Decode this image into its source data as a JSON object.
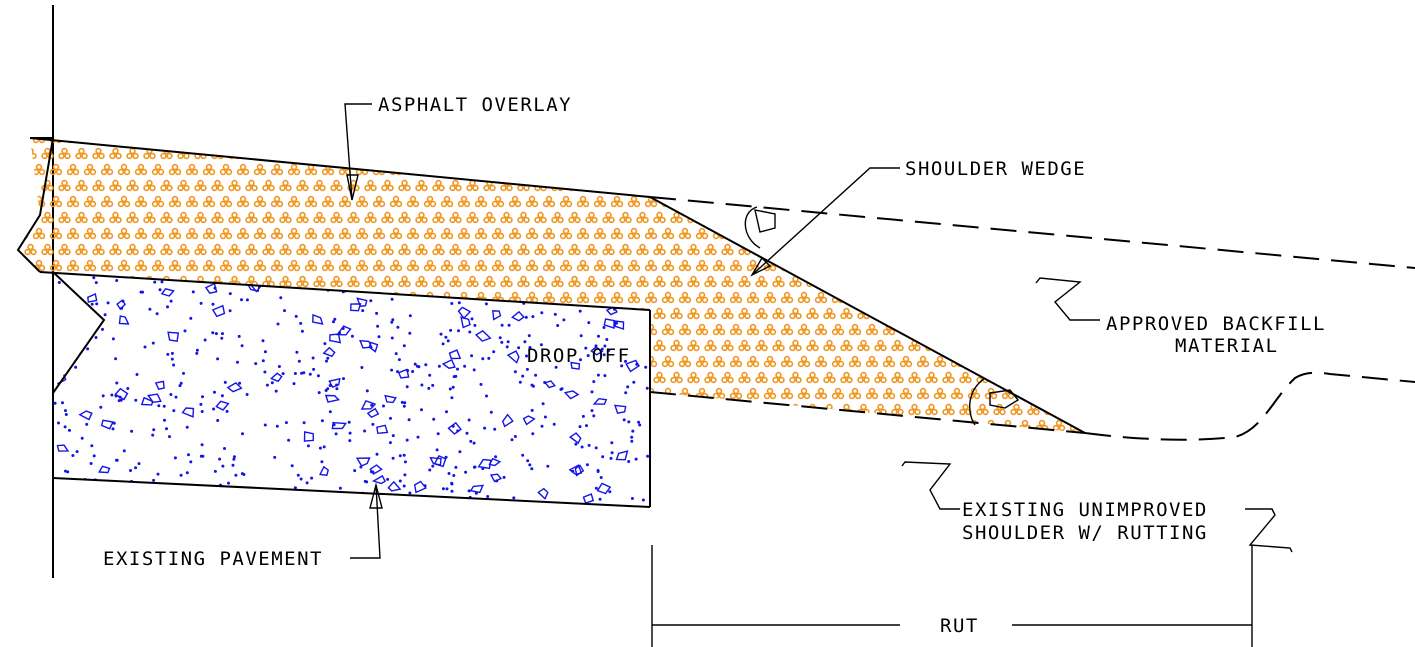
{
  "labels": {
    "asphalt_overlay": "ASPHALT OVERLAY",
    "shoulder_wedge": "SHOULDER WEDGE",
    "approved_backfill_line1": "APPROVED BACKFILL",
    "approved_backfill_line2": "MATERIAL",
    "drop_off": "DROP OFF",
    "existing_unimproved_line1": "EXISTING UNIMPROVED",
    "existing_unimproved_line2": "SHOULDER W/ RUTTING",
    "existing_pavement": "EXISTING PAVEMENT",
    "rut": "RUT"
  },
  "colors": {
    "asphalt_hatch": "#F0961E",
    "pavement_hatch": "#1414E6",
    "linework": "#000000"
  }
}
